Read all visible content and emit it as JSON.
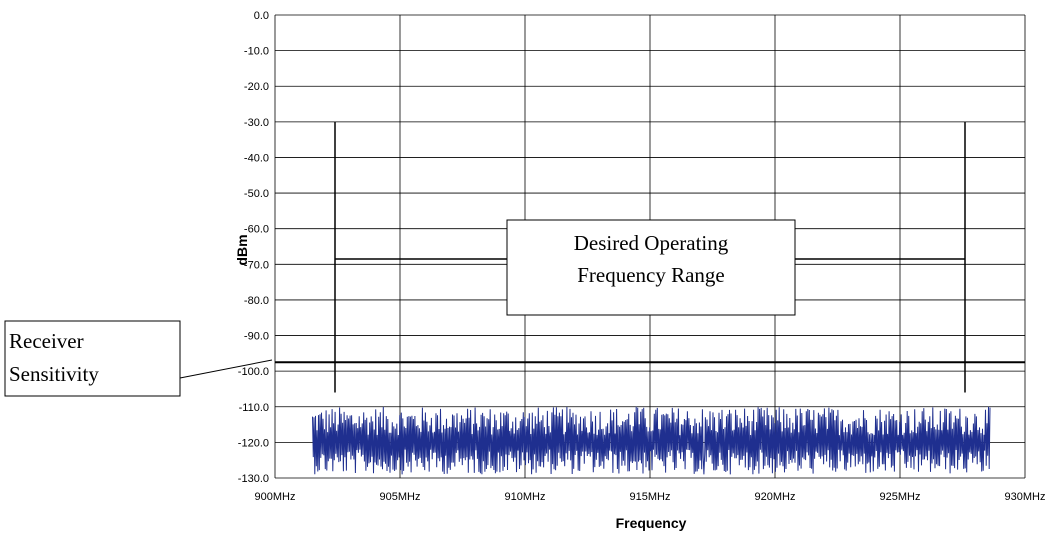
{
  "chart_data": {
    "type": "line",
    "xlabel": "Frequency",
    "ylabel": "dBm",
    "xlim": [
      900,
      930
    ],
    "ylim": [
      -130,
      0
    ],
    "x_ticks": [
      "900MHz",
      "905MHz",
      "910MHz",
      "915MHz",
      "920MHz",
      "925MHz",
      "930MHz"
    ],
    "y_ticks": [
      "0.0",
      "-10.0",
      "-20.0",
      "-30.0",
      "-40.0",
      "-50.0",
      "-60.0",
      "-70.0",
      "-80.0",
      "-90.0",
      "-100.0",
      "-110.0",
      "-120.0",
      "-130.0"
    ],
    "grid": true,
    "noise_series": {
      "x_range": [
        901.5,
        928.6
      ],
      "center": -120,
      "min": -129,
      "max": -110,
      "color": "#1f2f8f"
    },
    "receiver_sensitivity": -97.5,
    "band": {
      "start": 902.4,
      "end": 927.6,
      "marker_top": -30,
      "marker_bottom": -106,
      "arrow_level": -68.5
    },
    "annotations": {
      "range_line1": "Desired Operating",
      "range_line2": "Frequency Range",
      "sens_line1": "Receiver",
      "sens_line2": "Sensitivity"
    }
  }
}
